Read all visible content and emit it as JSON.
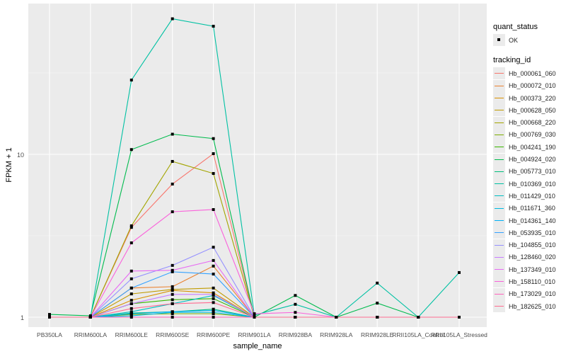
{
  "chart_data": {
    "type": "line",
    "xlabel": "sample_name",
    "ylabel": "FPKM + 1",
    "yscale": "log10",
    "ylim": [
      0.95,
      80
    ],
    "yticks": [
      "1",
      "10"
    ],
    "grid": true,
    "legend_position": "right",
    "categories": [
      "PB350LA",
      "RRIM600LA",
      "RRIM600LE",
      "RRIM600SE",
      "RRIM600PE",
      "RRIM901LA",
      "RRIM928BA",
      "RRIM928LA",
      "RRIM928LE",
      "RRII105LA_Control",
      "RRII105LA_Stressed"
    ],
    "point_legend": {
      "title": "quant_status",
      "items": [
        "OK"
      ]
    },
    "series_legend_title": "tracking_id",
    "series": [
      {
        "name": "Hb_000061_060",
        "color": "#F8766D",
        "values": [
          1,
          1,
          3.56,
          6.57,
          10.1,
          1,
          1,
          1,
          1,
          1,
          1
        ]
      },
      {
        "name": "Hb_000072_010",
        "color": "#EA8331",
        "values": [
          1,
          1,
          1.51,
          1.54,
          2.06,
          1,
          1,
          1,
          1,
          1,
          1
        ]
      },
      {
        "name": "Hb_000373_220",
        "color": "#D89000",
        "values": [
          1,
          1,
          1.27,
          1.46,
          1.41,
          1,
          1,
          1,
          1,
          1,
          1
        ]
      },
      {
        "name": "Hb_000628_050",
        "color": "#C09B00",
        "values": [
          1,
          1,
          1.39,
          1.48,
          1.51,
          1,
          1,
          1,
          1,
          1,
          1
        ]
      },
      {
        "name": "Hb_000668_220",
        "color": "#A3A500",
        "values": [
          1,
          1,
          3.64,
          9.05,
          7.63,
          1,
          1,
          1,
          1,
          1,
          1
        ]
      },
      {
        "name": "Hb_000769_030",
        "color": "#7CAE00",
        "values": [
          1,
          1,
          1.04,
          1.05,
          1.05,
          1,
          1,
          1,
          1,
          1,
          1
        ]
      },
      {
        "name": "Hb_004241_190",
        "color": "#39B600",
        "values": [
          1,
          1,
          1.21,
          1.28,
          1.3,
          1,
          1,
          1,
          1,
          1,
          1
        ]
      },
      {
        "name": "Hb_004924_020",
        "color": "#00BB4E",
        "values": [
          1.04,
          1.02,
          10.7,
          13.3,
          12.5,
          1,
          1.36,
          1,
          1.22,
          1,
          1
        ]
      },
      {
        "name": "Hb_005773_010",
        "color": "#00BF7D",
        "values": [
          1,
          1,
          1.06,
          1.08,
          1.12,
          1,
          1,
          1,
          1,
          1,
          1
        ]
      },
      {
        "name": "Hb_010369_010",
        "color": "#00C1A3",
        "values": [
          1,
          1,
          28.6,
          68,
          61.2,
          1.03,
          1.2,
          1,
          1.62,
          1,
          1.88
        ]
      },
      {
        "name": "Hb_011429_010",
        "color": "#00BFC4",
        "values": [
          1,
          1,
          1.08,
          1.21,
          1.36,
          1,
          1,
          1,
          1,
          1,
          1
        ]
      },
      {
        "name": "Hb_011671_360",
        "color": "#00BAE0",
        "values": [
          1,
          1,
          1.02,
          1.07,
          1.07,
          1,
          1,
          1,
          1,
          1,
          1
        ]
      },
      {
        "name": "Hb_014361_140",
        "color": "#00B0F6",
        "values": [
          1,
          1,
          1.05,
          1.08,
          1.1,
          1,
          1,
          1,
          1,
          1,
          1
        ]
      },
      {
        "name": "Hb_053935_010",
        "color": "#35A2FF",
        "values": [
          1,
          1,
          1.51,
          1.9,
          1.84,
          1,
          1,
          1,
          1,
          1,
          1
        ]
      },
      {
        "name": "Hb_104855_010",
        "color": "#9590FF",
        "values": [
          1,
          1,
          1.72,
          2.08,
          2.69,
          1,
          1,
          1,
          1,
          1,
          1
        ]
      },
      {
        "name": "Hb_128460_020",
        "color": "#C77CFF",
        "values": [
          1,
          1,
          1.21,
          1.38,
          1.38,
          1,
          1,
          1,
          1,
          1,
          1
        ]
      },
      {
        "name": "Hb_137349_010",
        "color": "#E76BF3",
        "values": [
          1,
          1,
          1.92,
          1.94,
          2.23,
          1,
          1,
          1,
          1,
          1,
          1
        ]
      },
      {
        "name": "Hb_158110_010",
        "color": "#FA62DB",
        "values": [
          1,
          1,
          2.86,
          4.44,
          4.58,
          1.05,
          1.07,
          1,
          1,
          1,
          1
        ]
      },
      {
        "name": "Hb_173029_010",
        "color": "#FF62BC",
        "values": [
          1,
          1,
          1,
          1,
          1,
          1,
          1,
          1,
          1,
          1,
          1
        ]
      },
      {
        "name": "Hb_182625_010",
        "color": "#FF6C91",
        "values": [
          1,
          1,
          1.13,
          1.21,
          1.23,
          1,
          1,
          1,
          1,
          1,
          1
        ]
      }
    ]
  }
}
